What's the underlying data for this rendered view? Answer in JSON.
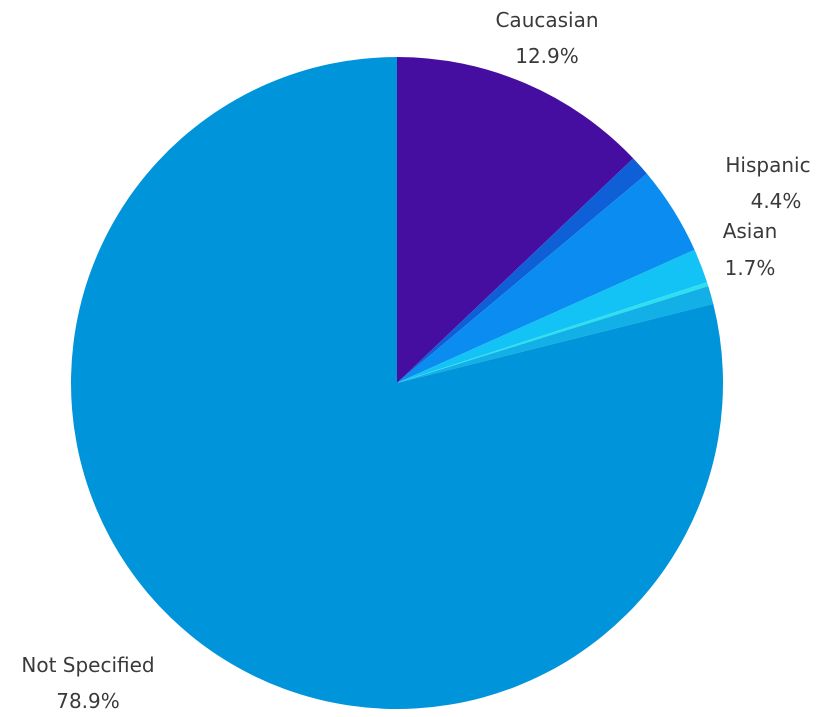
{
  "chart_data": {
    "type": "pie",
    "start_angle_deg": 0,
    "direction": "clockwise",
    "slices": [
      {
        "label": "Caucasian",
        "value_label": "12.9%",
        "value": 12.9,
        "color": "#450ea0"
      },
      {
        "label": "",
        "value_label": "",
        "value": 1.0,
        "color": "#0f5fd6"
      },
      {
        "label": "Hispanic",
        "value_label": "4.4%",
        "value": 4.4,
        "color": "#0a8cf0"
      },
      {
        "label": "Asian",
        "value_label": "1.7%",
        "value": 1.7,
        "color": "#14c3f5"
      },
      {
        "label": "",
        "value_label": "",
        "value": 0.2,
        "color": "#2de0f0"
      },
      {
        "label": "",
        "value_label": "",
        "value": 0.9,
        "color": "#12b0e6"
      },
      {
        "label": "Not Specified",
        "value_label": "78.9%",
        "value": 78.9,
        "color": "#0094db"
      }
    ]
  }
}
